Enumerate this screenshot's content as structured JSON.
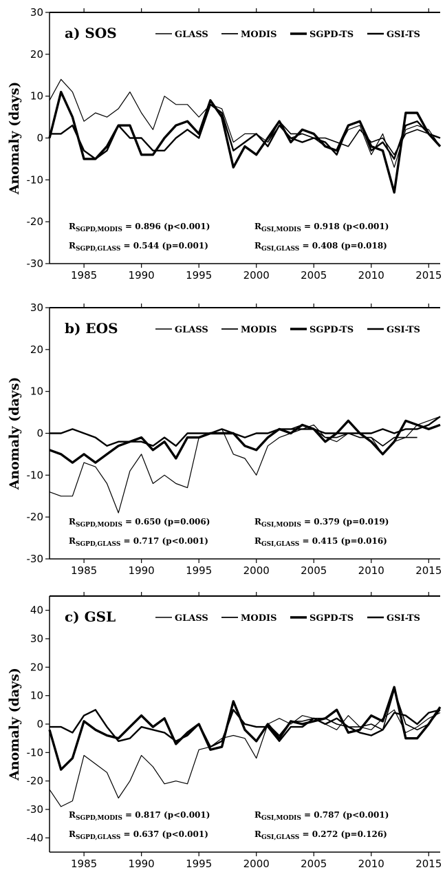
{
  "chart_data": [
    {
      "type": "line",
      "panel_label": "a) SOS",
      "ylabel": "Anomaly (days)",
      "ylim": [
        -30,
        30
      ],
      "yticks": [
        "30",
        "20",
        "10",
        "0",
        "-10",
        "-20",
        "-30"
      ],
      "xlim": [
        1982,
        2016
      ],
      "xticks": [
        "1985",
        "1990",
        "1995",
        "2000",
        "2005",
        "2010",
        "2015"
      ],
      "legend": [
        "GLASS",
        "MODIS",
        "SGPD-TS",
        "GSI-TS"
      ],
      "series": [
        {
          "name": "GLASS",
          "x": [
            1982,
            1983,
            1984,
            1985,
            1986,
            1987,
            1988,
            1989,
            1990,
            1991,
            1992,
            1993,
            1994,
            1995,
            1996,
            1997,
            1998,
            1999,
            2000,
            2001,
            2002,
            2003,
            2004,
            2005,
            2006,
            2007,
            2008,
            2009,
            2010,
            2011,
            2012,
            2013,
            2014,
            2015,
            2016
          ],
          "y": [
            9,
            14,
            11,
            4,
            6,
            5,
            7,
            11,
            6,
            2,
            10,
            8,
            8,
            5,
            8,
            7,
            -1,
            1,
            1,
            -1,
            3,
            0,
            1,
            0,
            -2,
            -3,
            2,
            3,
            -4,
            1,
            -7,
            2,
            3,
            2,
            -2
          ]
        },
        {
          "name": "MODIS",
          "x": [
            2001,
            2002,
            2003,
            2004,
            2005,
            2006,
            2007,
            2008,
            2009,
            2010,
            2011,
            2012,
            2013,
            2014,
            2015,
            2016
          ],
          "y": [
            -1,
            4,
            1,
            1,
            0,
            0,
            -1,
            -2,
            2,
            -1,
            0,
            -4,
            1,
            2,
            1,
            0
          ]
        },
        {
          "name": "SGPD-TS",
          "x": [
            1982,
            1983,
            1984,
            1985,
            1986,
            1987,
            1988,
            1989,
            1990,
            1991,
            1992,
            1993,
            1994,
            1995,
            1996,
            1997,
            1998,
            1999,
            2000,
            2001,
            2002,
            2003,
            2004,
            2005,
            2006,
            2007,
            2008,
            2009,
            2010,
            2011,
            2012,
            2013,
            2014,
            2015,
            2016
          ],
          "y": [
            0,
            11,
            5,
            -5,
            -5,
            -2,
            3,
            3,
            -4,
            -4,
            0,
            3,
            4,
            1,
            9,
            5,
            -7,
            -2,
            -4,
            0,
            4,
            -1,
            2,
            1,
            -2,
            -3,
            3,
            4,
            -2,
            -3,
            -13,
            6,
            6,
            1,
            -2
          ]
        },
        {
          "name": "GSI-TS",
          "x": [
            1982,
            1983,
            1984,
            1985,
            1986,
            1987,
            1988,
            1989,
            1990,
            1991,
            1992,
            1993,
            1994,
            1995,
            1996,
            1997,
            1998,
            1999,
            2000,
            2001,
            2002,
            2003,
            2004,
            2005,
            2006,
            2007,
            2008,
            2009,
            2010,
            2011,
            2012,
            2013,
            2014,
            2015,
            2016
          ],
          "y": [
            1,
            1,
            3,
            -3,
            -5,
            -3,
            3,
            0,
            0,
            -3,
            -3,
            0,
            2,
            0,
            8,
            6,
            -3,
            -1,
            1,
            -2,
            3,
            0,
            -1,
            0,
            -1,
            -4,
            3,
            4,
            -3,
            -1,
            -5,
            3,
            4,
            1,
            0
          ]
        }
      ],
      "stats": [
        {
          "sub": "SGPD,MODIS",
          "value": "= 0.896 (p<0.001)"
        },
        {
          "sub": "SGPD,GLASS",
          "value": "= 0.544 (p=0.001)"
        },
        {
          "sub": "GSI,MODIS",
          "value": "= 0.918 (p<0.001)"
        },
        {
          "sub": "GSI,GLASS",
          "value": "= 0.408 (p=0.018)"
        }
      ]
    },
    {
      "type": "line",
      "panel_label": "b) EOS",
      "ylabel": "Anomaly (days)",
      "ylim": [
        -30,
        30
      ],
      "yticks": [
        "30",
        "20",
        "10",
        "0",
        "-10",
        "-20",
        "-30"
      ],
      "xlim": [
        1982,
        2016
      ],
      "xticks": [
        "1985",
        "1990",
        "1995",
        "2000",
        "2005",
        "2010",
        "2015"
      ],
      "legend": [
        "GLASS",
        "MODIS",
        "SGPD-TS",
        "GSI-TS"
      ],
      "series": [
        {
          "name": "GLASS",
          "x": [
            1982,
            1983,
            1984,
            1985,
            1986,
            1987,
            1988,
            1989,
            1990,
            1991,
            1992,
            1993,
            1994,
            1995,
            1996,
            1997,
            1998,
            1999,
            2000,
            2001,
            2002,
            2003,
            2004,
            2005,
            2006,
            2007,
            2008,
            2009,
            2010,
            2011,
            2012,
            2013,
            2014,
            2015,
            2016
          ],
          "y": [
            -14,
            -15,
            -15,
            -7,
            -8,
            -12,
            -19,
            -9,
            -5,
            -12,
            -10,
            -12,
            -13,
            -1,
            0,
            1,
            -5,
            -6,
            -10,
            -3,
            -1,
            0,
            1,
            2,
            -1,
            -2,
            0,
            -1,
            -1,
            -5,
            -2,
            -1,
            2,
            3,
            4
          ]
        },
        {
          "name": "MODIS",
          "x": [
            2001,
            2002,
            2003,
            2004,
            2005,
            2006,
            2007,
            2008,
            2009,
            2010,
            2011,
            2012,
            2013,
            2014
          ],
          "y": [
            -1,
            1,
            1,
            2,
            1,
            -1,
            -1,
            0,
            -1,
            -1,
            -3,
            -1,
            -1,
            -1
          ]
        },
        {
          "name": "SGPD-TS",
          "x": [
            1982,
            1983,
            1984,
            1985,
            1986,
            1987,
            1988,
            1989,
            1990,
            1991,
            1992,
            1993,
            1994,
            1995,
            1996,
            1997,
            1998,
            1999,
            2000,
            2001,
            2002,
            2003,
            2004,
            2005,
            2006,
            2007,
            2008,
            2009,
            2010,
            2011,
            2012,
            2013,
            2014,
            2015,
            2016
          ],
          "y": [
            -4,
            -5,
            -7,
            -5,
            -7,
            -5,
            -3,
            -2,
            -1,
            -4,
            -2,
            -6,
            -1,
            -1,
            0,
            0,
            0,
            -3,
            -4,
            -1,
            1,
            0,
            2,
            1,
            -2,
            0,
            3,
            0,
            -2,
            -5,
            -2,
            3,
            2,
            1,
            2
          ]
        },
        {
          "name": "GSI-TS",
          "x": [
            1982,
            1983,
            1984,
            1985,
            1986,
            1987,
            1988,
            1989,
            1990,
            1991,
            1992,
            1993,
            1994,
            1995,
            1996,
            1997,
            1998,
            1999,
            2000,
            2001,
            2002,
            2003,
            2004,
            2005,
            2006,
            2007,
            2008,
            2009,
            2010,
            2011,
            2012,
            2013,
            2014,
            2015,
            2016
          ],
          "y": [
            0,
            0,
            1,
            0,
            -1,
            -3,
            -2,
            -2,
            -2,
            -3,
            -1,
            -3,
            0,
            0,
            0,
            1,
            0,
            -1,
            0,
            0,
            1,
            1,
            1,
            1,
            0,
            0,
            0,
            0,
            0,
            1,
            0,
            1,
            1,
            2,
            4
          ]
        }
      ],
      "stats": [
        {
          "sub": "SGPD,MODIS",
          "value": "= 0.650 (p=0.006)"
        },
        {
          "sub": "SGPD,GLASS",
          "value": "= 0.717 (p<0.001)"
        },
        {
          "sub": "GSI,MODIS",
          "value": "= 0.379 (p=0.019)"
        },
        {
          "sub": "GSI,GLASS",
          "value": "= 0.415 (p=0.016)"
        }
      ]
    },
    {
      "type": "line",
      "panel_label": "c) GSL",
      "ylabel": "Anomaly (days)",
      "ylim": [
        -45,
        45
      ],
      "yticks": [
        "40",
        "30",
        "20",
        "10",
        "0",
        "-10",
        "-20",
        "-30",
        "-40"
      ],
      "ytick_values": [
        40,
        30,
        20,
        10,
        0,
        -10,
        -20,
        -30,
        -40
      ],
      "xlim": [
        1982,
        2016
      ],
      "xticks": [
        "1985",
        "1990",
        "1995",
        "2000",
        "2005",
        "2010",
        "2015"
      ],
      "legend": [
        "GLASS",
        "MODIS",
        "SGPD-TS",
        "GSI-TS"
      ],
      "series": [
        {
          "name": "GLASS",
          "x": [
            1982,
            1983,
            1984,
            1985,
            1986,
            1987,
            1988,
            1989,
            1990,
            1991,
            1992,
            1993,
            1994,
            1995,
            1996,
            1997,
            1998,
            1999,
            2000,
            2001,
            2002,
            2003,
            2004,
            2005,
            2006,
            2007,
            2008,
            2009,
            2010,
            2011,
            2012,
            2013,
            2014,
            2015,
            2016
          ],
          "y": [
            -23,
            -29,
            -27,
            -11,
            -14,
            -17,
            -26,
            -20,
            -11,
            -15,
            -21,
            -20,
            -21,
            -9,
            -8,
            -5,
            -4,
            -5,
            -12,
            0,
            2,
            0,
            3,
            2,
            0,
            -2,
            3,
            -1,
            -2,
            2,
            5,
            -3,
            -1,
            2,
            4
          ]
        },
        {
          "name": "MODIS",
          "x": [
            2001,
            2002,
            2003,
            2004,
            2005,
            2006,
            2007,
            2008,
            2009,
            2010,
            2011,
            2012,
            2013,
            2014,
            2015,
            2016
          ],
          "y": [
            0,
            -4,
            1,
            1,
            2,
            2,
            0,
            -1,
            -1,
            0,
            -2,
            12,
            0,
            -2,
            0,
            5
          ]
        },
        {
          "name": "SGPD-TS",
          "x": [
            1982,
            1983,
            1984,
            1985,
            1986,
            1987,
            1988,
            1989,
            1990,
            1991,
            1992,
            1993,
            1994,
            1995,
            1996,
            1997,
            1998,
            1999,
            2000,
            2001,
            2002,
            2003,
            2004,
            2005,
            2006,
            2007,
            2008,
            2009,
            2010,
            2011,
            2012,
            2013,
            2014,
            2015,
            2016
          ],
          "y": [
            -2,
            -16,
            -12,
            1,
            -2,
            -4,
            -5,
            -1,
            3,
            -1,
            2,
            -7,
            -3,
            0,
            -9,
            -8,
            8,
            -2,
            -6,
            0,
            -5,
            1,
            0,
            1,
            2,
            5,
            -3,
            -2,
            3,
            1,
            13,
            -5,
            -5,
            0,
            6
          ]
        },
        {
          "name": "GSI-TS",
          "x": [
            1982,
            1983,
            1984,
            1985,
            1986,
            1987,
            1988,
            1989,
            1990,
            1991,
            1992,
            1993,
            1994,
            1995,
            1996,
            1997,
            1998,
            1999,
            2000,
            2001,
            2002,
            2003,
            2004,
            2005,
            2006,
            2007,
            2008,
            2009,
            2010,
            2011,
            2012,
            2013,
            2014,
            2015,
            2016
          ],
          "y": [
            -1,
            -1,
            -3,
            3,
            5,
            -1,
            -6,
            -5,
            -1,
            -2,
            -3,
            -6,
            -4,
            0,
            -8,
            -6,
            5,
            0,
            -1,
            -1,
            -6,
            -1,
            -1,
            2,
            0,
            2,
            -1,
            -3,
            -4,
            -2,
            4,
            3,
            0,
            4,
            5
          ]
        }
      ],
      "stats": [
        {
          "sub": "SGPD,MODIS",
          "value": "= 0.817 (p<0.001)"
        },
        {
          "sub": "SGPD,GLASS",
          "value": "= 0.637 (p<0.001)"
        },
        {
          "sub": "GSI,MODIS",
          "value": "= 0.787 (p<0.001)"
        },
        {
          "sub": "GSI,GLASS",
          "value": "= 0.272 (p=0.126)"
        }
      ]
    }
  ],
  "styles": {
    "line_color": "#000000",
    "envelope_color": "#888888"
  }
}
